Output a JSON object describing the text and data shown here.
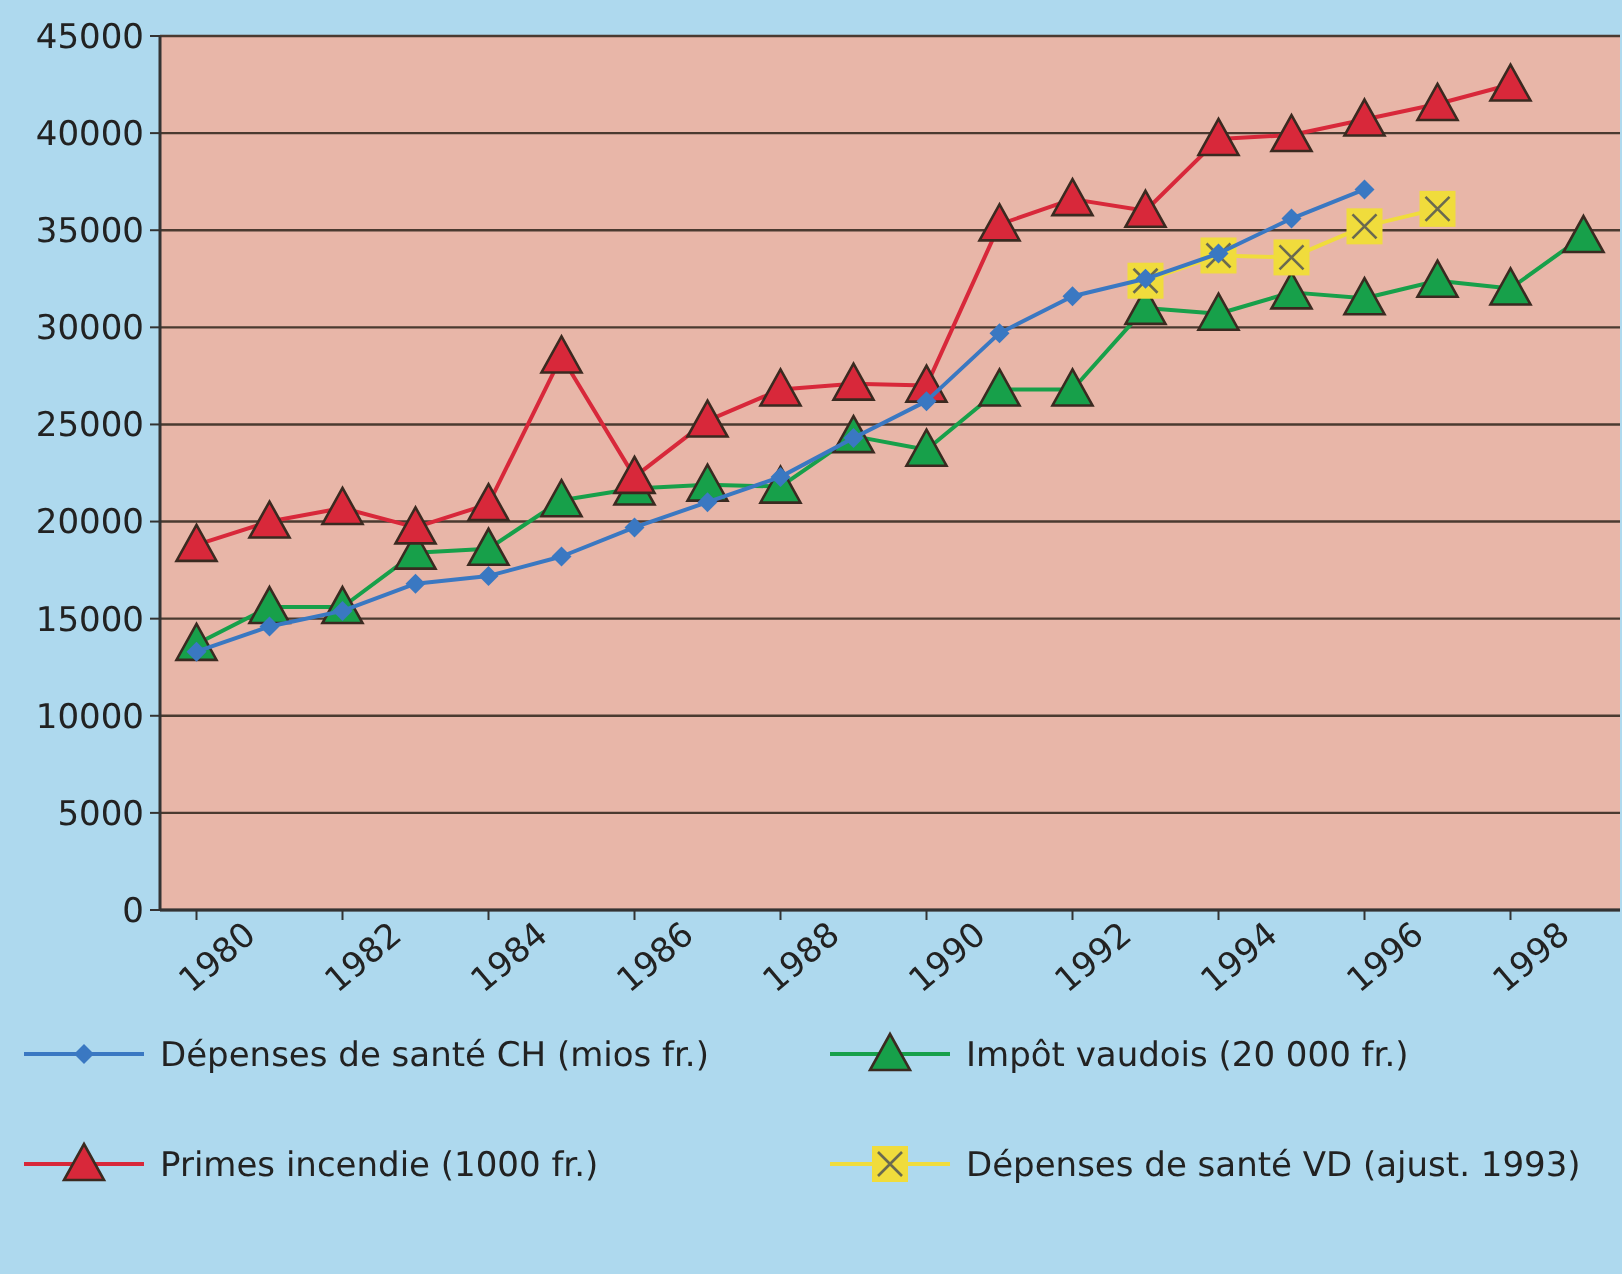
{
  "chart_data": {
    "type": "line",
    "x": [
      1980,
      1981,
      1982,
      1983,
      1984,
      1985,
      1986,
      1987,
      1988,
      1989,
      1990,
      1991,
      1992,
      1993,
      1994,
      1995,
      1996,
      1997,
      1998,
      1999
    ],
    "xlim": [
      1979.5,
      1999.5
    ],
    "xticks": [
      1980,
      1982,
      1984,
      1986,
      1988,
      1990,
      1992,
      1994,
      1996,
      1998
    ],
    "ylim": [
      0,
      45000
    ],
    "yticks": [
      0,
      5000,
      10000,
      15000,
      20000,
      25000,
      30000,
      35000,
      40000,
      45000
    ],
    "grid": "y",
    "legend": "bottom",
    "series": [
      {
        "name": "Dépenses de santé CH (mios fr.)",
        "color": "#3a78c2",
        "marker": "diamond",
        "values": [
          13300,
          14600,
          15400,
          16800,
          17200,
          18200,
          19700,
          21000,
          22300,
          24300,
          26200,
          29700,
          31600,
          32500,
          33800,
          35600,
          37100,
          null,
          null,
          null
        ]
      },
      {
        "name": "Impôt vaudois (20 000 fr.)",
        "color": "#17a04a",
        "marker": "triangle",
        "values": [
          13700,
          15600,
          15600,
          18400,
          18600,
          21100,
          21700,
          21900,
          21800,
          24400,
          23700,
          26800,
          26800,
          31000,
          30700,
          31800,
          31500,
          32400,
          32000,
          34700
        ]
      },
      {
        "name": "Primes incendie (1000 fr.)",
        "color": "#d8283a",
        "marker": "triangle",
        "values": [
          18800,
          20000,
          20700,
          19700,
          20900,
          28500,
          22300,
          25200,
          26800,
          27100,
          27000,
          35300,
          36600,
          36000,
          39700,
          39900,
          40700,
          41500,
          42500,
          null
        ]
      },
      {
        "name": "Dépenses de santé VD (ajust. 1993)",
        "color": "#f0dc3c",
        "marker": "square",
        "values": [
          null,
          null,
          null,
          null,
          null,
          null,
          null,
          null,
          null,
          null,
          null,
          null,
          null,
          32400,
          33700,
          33600,
          35200,
          36100,
          null,
          null
        ]
      }
    ]
  }
}
